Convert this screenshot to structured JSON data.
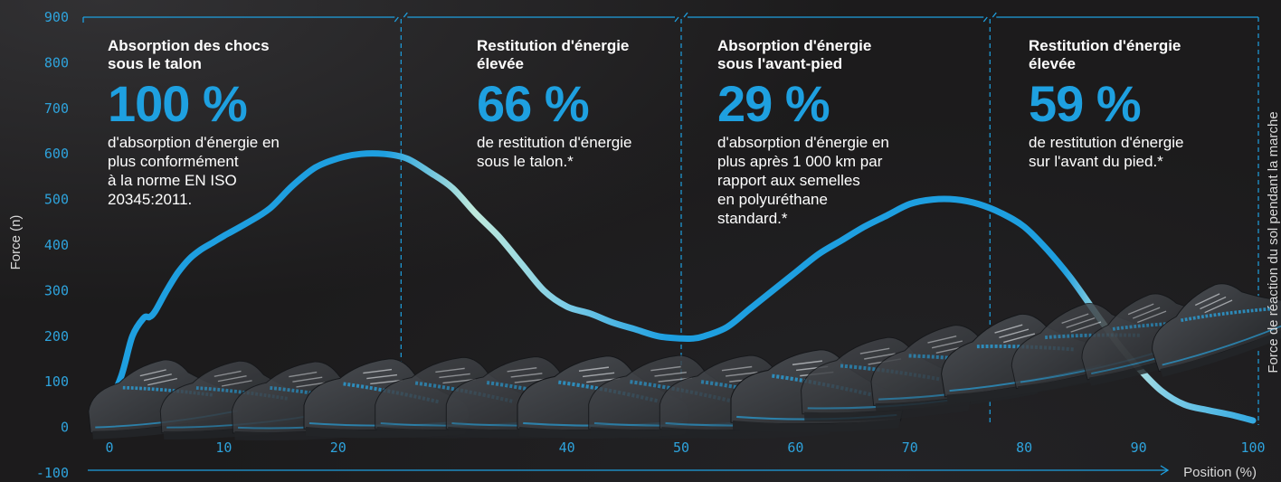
{
  "chart_data": {
    "type": "line",
    "title": "",
    "xlabel": "Position (%)",
    "ylabel": "Force (n)",
    "y2label": "Force de réaction du sol pendant la marche",
    "xlim": [
      0,
      100
    ],
    "ylim": [
      -100,
      900
    ],
    "xticks": [
      0,
      10,
      20,
      30,
      40,
      50,
      60,
      70,
      80,
      90,
      100
    ],
    "xtick_labels": [
      "0",
      "10",
      "20",
      "",
      "40",
      "50",
      "60",
      "70",
      "80",
      "90",
      "100"
    ],
    "yticks": [
      -100,
      0,
      100,
      200,
      300,
      400,
      500,
      600,
      700,
      800,
      900
    ],
    "grid": false,
    "phase_boundaries": [
      25.5,
      50,
      77
    ],
    "series": [
      {
        "x": [
          -0.5,
          1,
          2,
          3,
          3.5,
          4,
          5,
          6,
          7,
          8,
          9,
          10,
          12,
          14,
          16,
          18,
          20,
          22,
          24,
          26,
          28,
          30,
          32,
          34,
          36,
          38,
          40,
          42,
          44,
          46,
          48,
          50,
          51,
          52,
          54,
          56,
          58,
          60,
          62,
          64,
          66,
          68,
          70,
          72,
          74,
          76,
          78,
          80,
          82,
          84,
          86,
          88,
          90,
          92,
          94,
          96,
          98,
          100
        ],
        "y": [
          25,
          110,
          200,
          240,
          242,
          255,
          300,
          340,
          370,
          390,
          405,
          420,
          448,
          480,
          530,
          570,
          590,
          600,
          600,
          590,
          560,
          525,
          470,
          420,
          360,
          300,
          265,
          250,
          230,
          215,
          200,
          195,
          195,
          200,
          220,
          260,
          300,
          340,
          380,
          410,
          440,
          465,
          490,
          500,
          500,
          490,
          470,
          440,
          390,
          330,
          260,
          190,
          130,
          80,
          50,
          38,
          28,
          15
        ]
      }
    ],
    "annotations": [
      {
        "heading": "Absorption des chocs\nsous le talon",
        "value": "100 %",
        "text": "d'absorption d'énergie en\nplus conformément\nà la norme EN ISO\n20345:2011."
      },
      {
        "heading": "Restitution d'énergie\nélevée",
        "value": "66 %",
        "text": "de restitution d'énergie\nsous le talon.*"
      },
      {
        "heading": "Absorption d'énergie\nsous l'avant-pied",
        "value": "29 %",
        "text": "d'absorption d'énergie en\nplus après 1 000 km par\nrapport aux semelles\nen polyuréthane\nstandard.*"
      },
      {
        "heading": "Restitution d'énergie\nélevée",
        "value": "59 %",
        "text": "de restitution d'énergie\nsur l'avant du pied.*"
      }
    ],
    "colors": {
      "line_primary": "#1ea0e0",
      "line_light": "#cfeee0",
      "accent": "#1ea0e0",
      "background": "#1c1b1c"
    }
  },
  "illustration": {
    "shoe_count": 16,
    "icon": "safety-shoe-icon"
  }
}
